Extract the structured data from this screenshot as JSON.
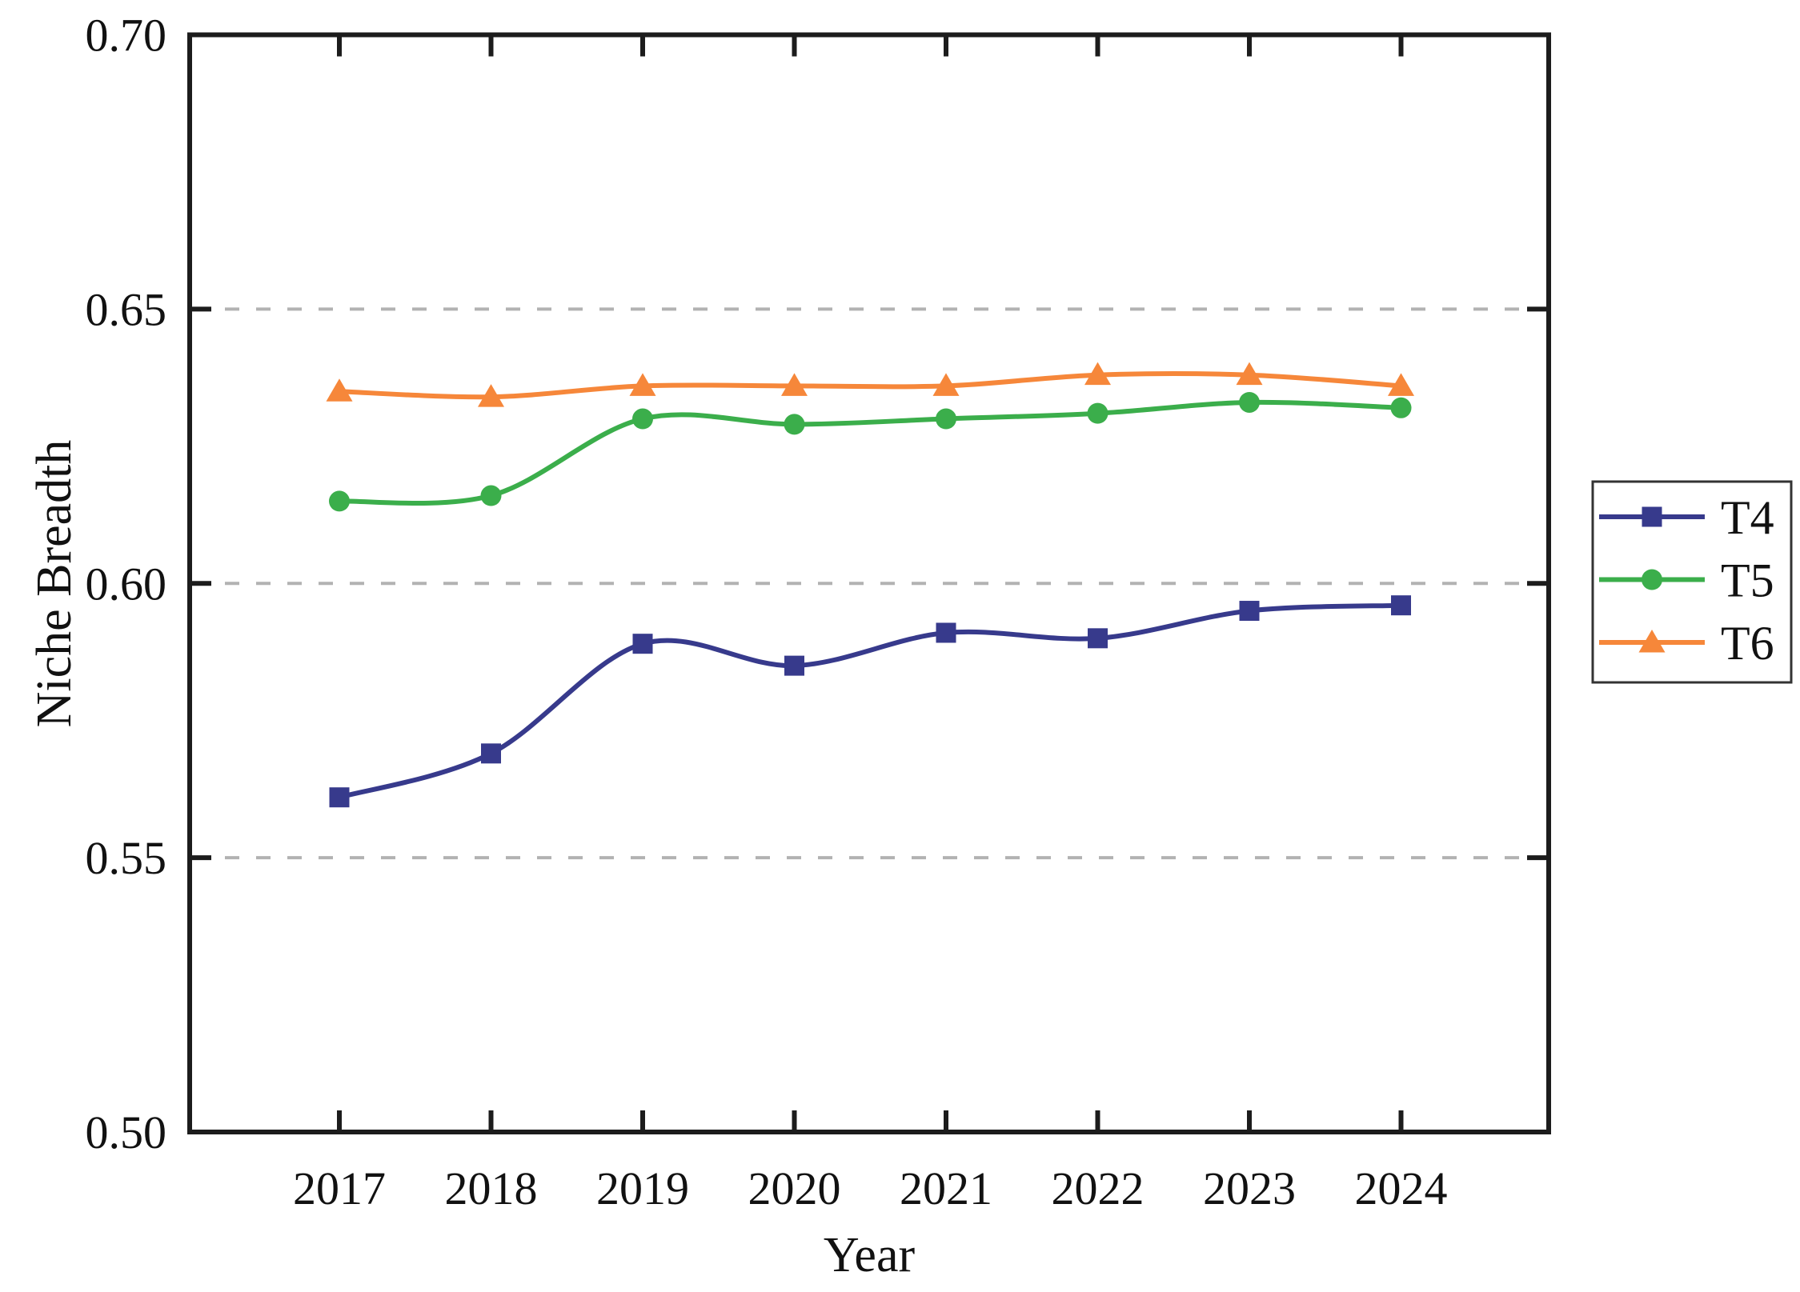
{
  "figure": {
    "background": "#ffffff"
  },
  "chart_data": {
    "type": "line",
    "title": "",
    "xlabel": "Year",
    "ylabel": "Niche Breadth",
    "categories": [
      "2017",
      "2018",
      "2019",
      "2020",
      "2021",
      "2022",
      "2023",
      "2024"
    ],
    "ylim": [
      0.5,
      0.7
    ],
    "yticks": [
      0.5,
      0.55,
      0.6,
      0.65,
      0.7
    ],
    "ytick_labels": [
      "0.50",
      "0.55",
      "0.60",
      "0.65",
      "0.70"
    ],
    "grid": {
      "y_values": [
        0.55,
        0.6,
        0.65
      ],
      "style": "dashed",
      "color": "#b2b2b2",
      "on": true
    },
    "axis_color": "#1c1c1c",
    "text_color": "#111111",
    "legend": {
      "position": "outside-right",
      "border_color": "#333333",
      "background": "#ffffff",
      "entries": [
        "T4",
        "T5",
        "T6"
      ]
    },
    "series": [
      {
        "name": "T4",
        "marker": "square",
        "color": "#373a8c",
        "values": [
          0.561,
          0.569,
          0.589,
          0.585,
          0.591,
          0.59,
          0.595,
          0.596
        ]
      },
      {
        "name": "T5",
        "marker": "circle",
        "color": "#3bae4b",
        "values": [
          0.615,
          0.616,
          0.63,
          0.629,
          0.63,
          0.631,
          0.633,
          0.632
        ]
      },
      {
        "name": "T6",
        "marker": "triangle",
        "color": "#f6873a",
        "values": [
          0.635,
          0.634,
          0.636,
          0.636,
          0.636,
          0.638,
          0.638,
          0.636
        ]
      }
    ]
  }
}
